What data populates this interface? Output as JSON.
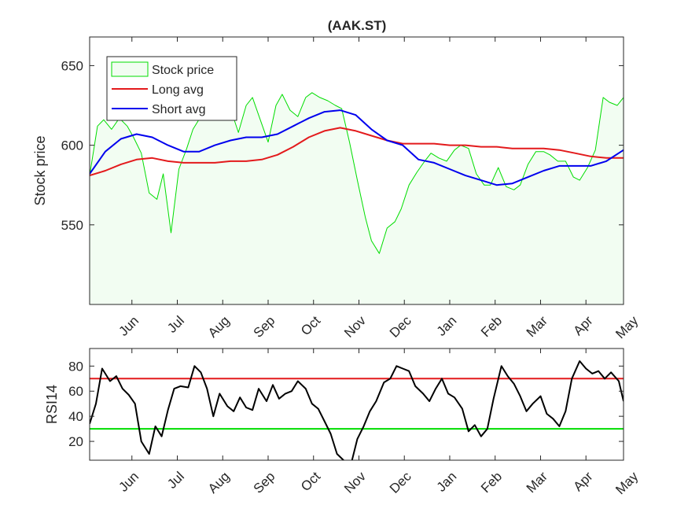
{
  "chart_data": [
    {
      "type": "area",
      "title": "(AAK.ST)",
      "ylabel": "Stock price",
      "xlabel": "",
      "ylim": [
        500,
        668
      ],
      "xlim": [
        0,
        341
      ],
      "yticks": [
        550,
        600,
        650
      ],
      "month_labels": [
        "Jun",
        "Jul",
        "Aug",
        "Sep",
        "Oct",
        "Nov",
        "Dec",
        "Jan",
        "Feb",
        "Mar",
        "Apr",
        "May"
      ],
      "month_positions": [
        27,
        56,
        85,
        114,
        143,
        172,
        201,
        230,
        259,
        288,
        317,
        346
      ],
      "grid": false,
      "legend": {
        "position": "top-left",
        "entries": [
          "Stock price",
          "Long avg",
          "Short avg"
        ]
      },
      "colors": {
        "price": "#00dd00",
        "price_fill": "#f2fdf2",
        "long_avg": "#e31a1c",
        "short_avg": "#0000ee"
      },
      "series": [
        {
          "name": "Stock price",
          "x": [
            0,
            5,
            9,
            14,
            19,
            24,
            28,
            33,
            38,
            43,
            47,
            52,
            57,
            62,
            66,
            71,
            76,
            81,
            85,
            90,
            95,
            100,
            104,
            109,
            114,
            119,
            123,
            128,
            133,
            138,
            142,
            147,
            152,
            157,
            161,
            166,
            171,
            176,
            180,
            185,
            190,
            195,
            199,
            204,
            209,
            214,
            218,
            223,
            228,
            233,
            237,
            242,
            247,
            252,
            256,
            261,
            266,
            271,
            275,
            280,
            285,
            290,
            294,
            299,
            304,
            309,
            313,
            318,
            323,
            328,
            332,
            337,
            341
          ],
          "values": [
            581,
            612,
            616,
            610,
            617,
            612,
            605,
            595,
            570,
            566,
            582,
            545,
            585,
            598,
            610,
            618,
            620,
            624,
            622,
            623,
            608,
            625,
            630,
            616,
            602,
            625,
            632,
            622,
            618,
            630,
            633,
            630,
            628,
            625,
            623,
            602,
            578,
            555,
            540,
            532,
            548,
            552,
            560,
            575,
            583,
            590,
            595,
            592,
            590,
            597,
            600,
            598,
            582,
            575,
            575,
            586,
            574,
            572,
            575,
            588,
            596,
            596,
            594,
            590,
            590,
            580,
            578,
            586,
            597,
            630,
            627,
            625,
            630
          ]
        },
        {
          "name": "Long avg",
          "x": [
            0,
            10,
            20,
            30,
            40,
            50,
            60,
            70,
            80,
            90,
            100,
            110,
            120,
            130,
            140,
            150,
            160,
            170,
            180,
            190,
            200,
            210,
            220,
            230,
            240,
            250,
            260,
            270,
            280,
            290,
            300,
            310,
            320,
            330,
            341
          ],
          "values": [
            581,
            584,
            588,
            591,
            592,
            590,
            589,
            589,
            589,
            590,
            590,
            591,
            594,
            599,
            605,
            609,
            611,
            609,
            606,
            603,
            601,
            601,
            601,
            600,
            600,
            599,
            599,
            598,
            598,
            598,
            597,
            595,
            593,
            592,
            592
          ]
        },
        {
          "name": "Short avg",
          "x": [
            0,
            10,
            20,
            30,
            40,
            50,
            60,
            70,
            80,
            90,
            100,
            110,
            120,
            130,
            140,
            150,
            160,
            170,
            180,
            190,
            200,
            210,
            220,
            230,
            240,
            250,
            260,
            270,
            280,
            290,
            300,
            310,
            320,
            330,
            341
          ],
          "values": [
            582,
            596,
            604,
            607,
            605,
            600,
            596,
            596,
            600,
            603,
            605,
            605,
            607,
            612,
            617,
            621,
            622,
            619,
            610,
            603,
            600,
            591,
            589,
            585,
            581,
            578,
            575,
            576,
            580,
            584,
            587,
            587,
            587,
            590,
            597
          ]
        }
      ]
    },
    {
      "type": "line",
      "title": "",
      "ylabel": "RSI14",
      "xlabel": "",
      "ylim": [
        5,
        94
      ],
      "xlim": [
        0,
        341
      ],
      "yticks": [
        20,
        40,
        60,
        80
      ],
      "month_labels": [
        "Jun",
        "Jul",
        "Aug",
        "Sep",
        "Oct",
        "Nov",
        "Dec",
        "Jan",
        "Feb",
        "Mar",
        "Apr",
        "May"
      ],
      "month_positions": [
        27,
        56,
        85,
        114,
        143,
        172,
        201,
        230,
        259,
        288,
        317,
        346
      ],
      "grid": false,
      "thresholds": [
        70,
        30
      ],
      "colors": {
        "rsi": "#000000",
        "upper": "#e31a1c",
        "lower": "#00dd00"
      },
      "series": [
        {
          "name": "RSI14",
          "x": [
            0,
            4,
            8,
            13,
            17,
            21,
            25,
            29,
            33,
            38,
            42,
            46,
            50,
            54,
            58,
            63,
            67,
            71,
            75,
            79,
            83,
            88,
            92,
            96,
            100,
            104,
            108,
            113,
            117,
            121,
            125,
            129,
            133,
            138,
            142,
            146,
            150,
            154,
            158,
            163,
            167,
            171,
            175,
            179,
            183,
            188,
            192,
            196,
            200,
            204,
            208,
            213,
            217,
            221,
            225,
            229,
            233,
            238,
            242,
            246,
            250,
            254,
            258,
            263,
            267,
            271,
            275,
            279,
            283,
            288,
            292,
            296,
            300,
            304,
            308,
            313,
            317,
            321,
            325,
            329,
            333,
            338,
            341
          ],
          "values": [
            34,
            50,
            78,
            68,
            72,
            62,
            57,
            50,
            20,
            10,
            32,
            24,
            45,
            62,
            64,
            63,
            80,
            75,
            62,
            40,
            58,
            48,
            44,
            55,
            47,
            45,
            62,
            52,
            65,
            54,
            58,
            60,
            68,
            62,
            50,
            46,
            36,
            26,
            10,
            4,
            2,
            22,
            32,
            44,
            52,
            67,
            70,
            80,
            78,
            76,
            64,
            58,
            52,
            62,
            70,
            58,
            55,
            46,
            28,
            33,
            24,
            30,
            54,
            80,
            72,
            66,
            56,
            44,
            50,
            56,
            42,
            38,
            32,
            44,
            70,
            84,
            78,
            74,
            76,
            70,
            75,
            68,
            52
          ]
        }
      ]
    }
  ]
}
